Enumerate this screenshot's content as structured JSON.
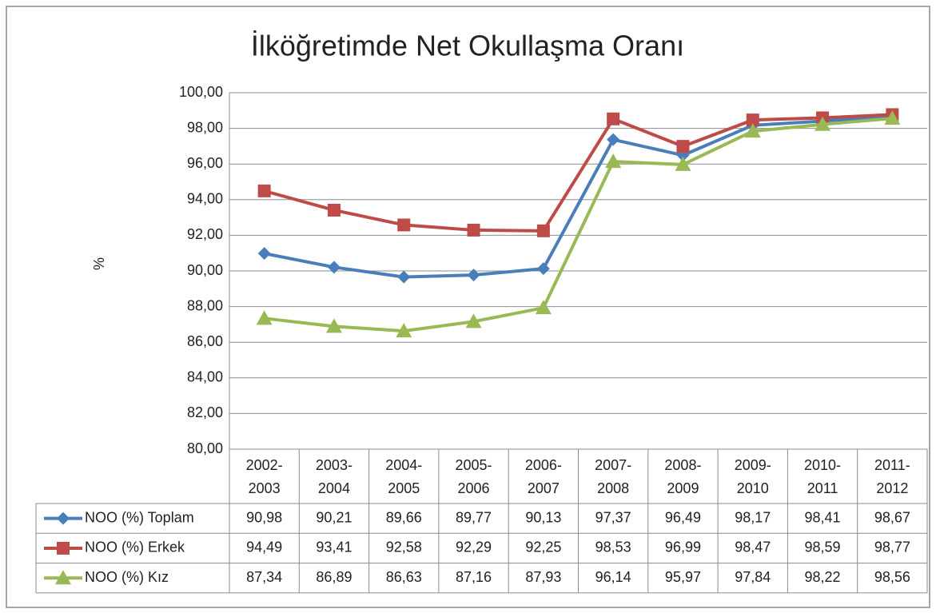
{
  "chart_data": {
    "type": "line",
    "title": "İlköğretimde Net Okullaşma Oranı",
    "y_label": "%",
    "categories": [
      "2002-2003",
      "2003-2004",
      "2004-2005",
      "2005-2006",
      "2006-2007",
      "2007-2008",
      "2008-2009",
      "2009-2010",
      "2010-2011",
      "2011-2012"
    ],
    "series": [
      {
        "name": "NOO (%) Toplam",
        "color": "#4a7ebb",
        "marker": "diamond",
        "values": [
          90.98,
          90.21,
          89.66,
          89.77,
          90.13,
          97.37,
          96.49,
          98.17,
          98.41,
          98.67
        ],
        "value_labels": [
          "90,98",
          "90,21",
          "89,66",
          "89,77",
          "90,13",
          "97,37",
          "96,49",
          "98,17",
          "98,41",
          "98,67"
        ]
      },
      {
        "name": "NOO (%) Erkek",
        "color": "#be4b48",
        "marker": "square",
        "values": [
          94.49,
          93.41,
          92.58,
          92.29,
          92.25,
          98.53,
          96.99,
          98.47,
          98.59,
          98.77
        ],
        "value_labels": [
          "94,49",
          "93,41",
          "92,58",
          "92,29",
          "92,25",
          "98,53",
          "96,99",
          "98,47",
          "98,59",
          "98,77"
        ]
      },
      {
        "name": "NOO (%) Kız",
        "color": "#98b954",
        "marker": "triangle",
        "values": [
          87.34,
          86.89,
          86.63,
          87.16,
          87.93,
          96.14,
          95.97,
          97.84,
          98.22,
          98.56
        ],
        "value_labels": [
          "87,34",
          "86,89",
          "86,63",
          "87,16",
          "87,93",
          "96,14",
          "95,97",
          "97,84",
          "98,22",
          "98,56"
        ]
      }
    ],
    "ylim": [
      80,
      100
    ],
    "yticks": [
      {
        "value": 80,
        "label": "80,00"
      },
      {
        "value": 82,
        "label": "82,00"
      },
      {
        "value": 84,
        "label": "84,00"
      },
      {
        "value": 86,
        "label": "86,00"
      },
      {
        "value": 88,
        "label": "88,00"
      },
      {
        "value": 90,
        "label": "90,00"
      },
      {
        "value": 92,
        "label": "92,00"
      },
      {
        "value": 94,
        "label": "94,00"
      },
      {
        "value": 96,
        "label": "96,00"
      },
      {
        "value": 98,
        "label": "98,00"
      },
      {
        "value": 100,
        "label": "100,00"
      }
    ],
    "grid": true
  }
}
